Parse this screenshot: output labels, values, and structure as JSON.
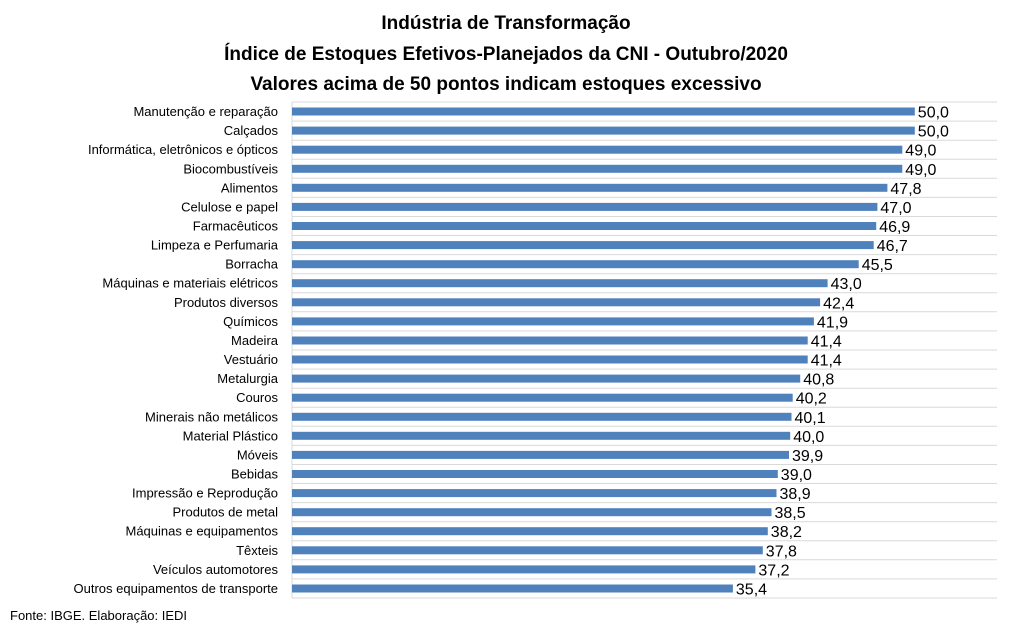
{
  "chart_data": {
    "type": "bar",
    "orientation": "horizontal",
    "title": "Indústria de Transformação",
    "subtitle": "Índice de Estoques Efetivos-Planejados da CNI - Outubro/2020",
    "subtitle2": "Valores acima de 50 pontos indicam estoques excessivo",
    "categories": [
      "Manutenção e reparação",
      "Calçados",
      "Informática, eletrônicos e ópticos",
      "Biocombustíveis",
      "Alimentos",
      "Celulose e papel",
      "Farmacêuticos",
      "Limpeza e Perfumaria",
      "Borracha",
      "Máquinas e materiais elétricos",
      "Produtos diversos",
      "Químicos",
      "Madeira",
      "Vestuário",
      "Metalurgia",
      "Couros",
      "Minerais não metálicos",
      "Material Plástico",
      "Móveis",
      "Bebidas",
      "Impressão e Reprodução ",
      "Produtos de metal",
      "Máquinas e equipamentos",
      "Têxteis",
      "Veículos automotores",
      "Outros equipamentos de transporte"
    ],
    "values": [
      50.0,
      50.0,
      49.0,
      49.0,
      47.8,
      47.0,
      46.9,
      46.7,
      45.5,
      43.0,
      42.4,
      41.9,
      41.4,
      41.4,
      40.8,
      40.2,
      40.1,
      40.0,
      39.9,
      39.0,
      38.9,
      38.5,
      38.2,
      37.8,
      37.2,
      35.4
    ],
    "value_labels": [
      "50,0",
      "50,0",
      "49,0",
      "49,0",
      "47,8",
      "47,0",
      "46,9",
      "46,7",
      "45,5",
      "43,0",
      "42,4",
      "41,9",
      "41,4",
      "41,4",
      "40,8",
      "40,2",
      "40,1",
      "40,0",
      "39,9",
      "39,0",
      "38,9",
      "38,5",
      "38,2",
      "37,8",
      "37,2",
      "35,4"
    ],
    "xlim": [
      0,
      56.6
    ],
    "grid": true,
    "bar_color": "#4F81BD",
    "grid_color": "#D9D9D9"
  },
  "source": "Fonte: IBGE. Elaboração: IEDI"
}
